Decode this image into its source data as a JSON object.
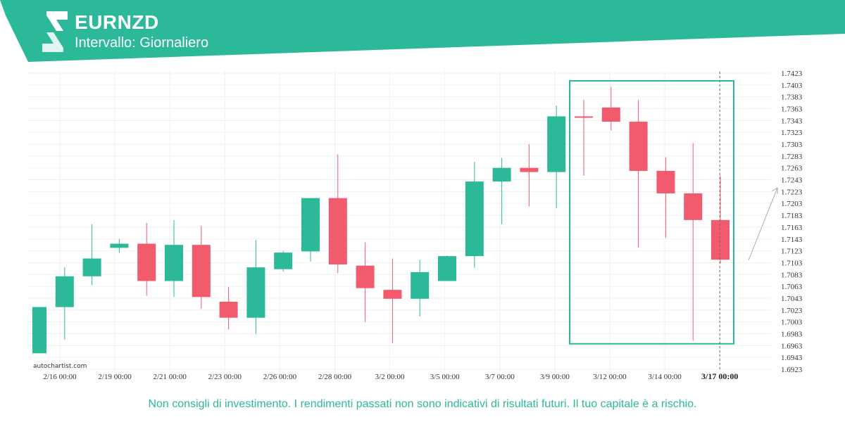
{
  "header": {
    "symbol": "EURNZD",
    "interval": "Intervallo: Giornaliero",
    "brand_color": "#2bb99a"
  },
  "watermark": "autochartist.com",
  "disclaimer": "Non consigli di investimento. I rendimenti passati non sono indicativi di risultati futuri. Il tuo capitale è a rischio.",
  "chart_data": {
    "type": "candlestick",
    "up_color": "#2bb99a",
    "down_color": "#f25a6e",
    "ylim": [
      1.6913,
      1.7433
    ],
    "y_ticks": [
      "1.7423",
      "1.7403",
      "1.7383",
      "1.7363",
      "1.7343",
      "1.7323",
      "1.7303",
      "1.7283",
      "1.7263",
      "1.7243",
      "1.7223",
      "1.7203",
      "1.7183",
      "1.7163",
      "1.7143",
      "1.7123",
      "1.7103",
      "1.7083",
      "1.7063",
      "1.7043",
      "1.7023",
      "1.7003",
      "1.6983",
      "1.6963",
      "1.6943",
      "1.6923"
    ],
    "x_labels": [
      "2/16 00:00",
      "2/19 00:00",
      "2/21 00:00",
      "2/23 00:00",
      "2/26 00:00",
      "2/28 00:00",
      "3/2 00:00",
      "3/5 00:00",
      "3/7 00:00",
      "3/9 00:00",
      "3/12 00:00",
      "3/14 00:00",
      "3/17 00:00"
    ],
    "highlighted_x_label": "3/17 00:00",
    "candles": [
      {
        "o": 1.695,
        "h": 1.7028,
        "l": 1.695,
        "c": 1.7028
      },
      {
        "o": 1.7028,
        "h": 1.7095,
        "l": 1.6973,
        "c": 1.708
      },
      {
        "o": 1.708,
        "h": 1.7168,
        "l": 1.7065,
        "c": 1.711
      },
      {
        "o": 1.7128,
        "h": 1.7143,
        "l": 1.712,
        "c": 1.7135
      },
      {
        "o": 1.7135,
        "h": 1.717,
        "l": 1.7047,
        "c": 1.7072
      },
      {
        "o": 1.7072,
        "h": 1.7175,
        "l": 1.7045,
        "c": 1.7133
      },
      {
        "o": 1.7133,
        "h": 1.7165,
        "l": 1.7025,
        "c": 1.7045
      },
      {
        "o": 1.7037,
        "h": 1.7062,
        "l": 1.699,
        "c": 1.701
      },
      {
        "o": 1.701,
        "h": 1.7141,
        "l": 1.6983,
        "c": 1.7095
      },
      {
        "o": 1.7092,
        "h": 1.7123,
        "l": 1.7088,
        "c": 1.712
      },
      {
        "o": 1.7122,
        "h": 1.7212,
        "l": 1.7105,
        "c": 1.7212
      },
      {
        "o": 1.7212,
        "h": 1.7286,
        "l": 1.7085,
        "c": 1.71
      },
      {
        "o": 1.7098,
        "h": 1.7137,
        "l": 1.7003,
        "c": 1.706
      },
      {
        "o": 1.7057,
        "h": 1.711,
        "l": 1.6967,
        "c": 1.7042
      },
      {
        "o": 1.7042,
        "h": 1.7107,
        "l": 1.7012,
        "c": 1.7087
      },
      {
        "o": 1.7072,
        "h": 1.7115,
        "l": 1.7072,
        "c": 1.7114
      },
      {
        "o": 1.7114,
        "h": 1.7273,
        "l": 1.7094,
        "c": 1.724
      },
      {
        "o": 1.724,
        "h": 1.728,
        "l": 1.7168,
        "c": 1.7263
      },
      {
        "o": 1.7263,
        "h": 1.7303,
        "l": 1.7198,
        "c": 1.7256
      },
      {
        "o": 1.7256,
        "h": 1.7368,
        "l": 1.7195,
        "c": 1.735
      },
      {
        "o": 1.735,
        "h": 1.7378,
        "l": 1.725,
        "c": 1.7348
      },
      {
        "o": 1.7365,
        "h": 1.74,
        "l": 1.7326,
        "c": 1.7341
      },
      {
        "o": 1.7341,
        "h": 1.7378,
        "l": 1.7128,
        "c": 1.7258
      },
      {
        "o": 1.7258,
        "h": 1.7281,
        "l": 1.7145,
        "c": 1.722
      },
      {
        "o": 1.722,
        "h": 1.7305,
        "l": 1.6971,
        "c": 1.7175
      },
      {
        "o": 1.7175,
        "h": 1.725,
        "l": 1.7102,
        "c": 1.7108
      }
    ],
    "pattern_highlight": {
      "from_candle": 20,
      "to_candle": 25,
      "y_top": 1.741,
      "y_bottom": 1.6966
    },
    "trend_arrow": "up",
    "vertical_marker_label": "3/17 00:00",
    "grid": true
  }
}
